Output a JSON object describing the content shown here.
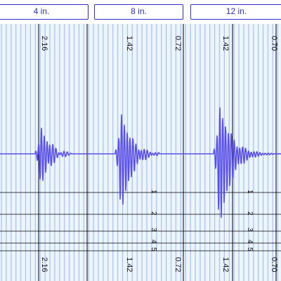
{
  "tabs": [
    {
      "label": "4 in."
    },
    {
      "label": "8 in."
    },
    {
      "label": "12 in."
    }
  ],
  "colors": {
    "accent": "#2b2fd6",
    "trace": "#5a4fe8",
    "grid_stripe": "#a9c6ee",
    "background": "#eef4fb",
    "line": "#000000"
  },
  "column_values": [
    "2.16",
    "1.42",
    "0.72",
    "1.42",
    "0.70"
  ],
  "marker_labels": [
    "1",
    "2",
    "3",
    "4",
    "5"
  ]
}
